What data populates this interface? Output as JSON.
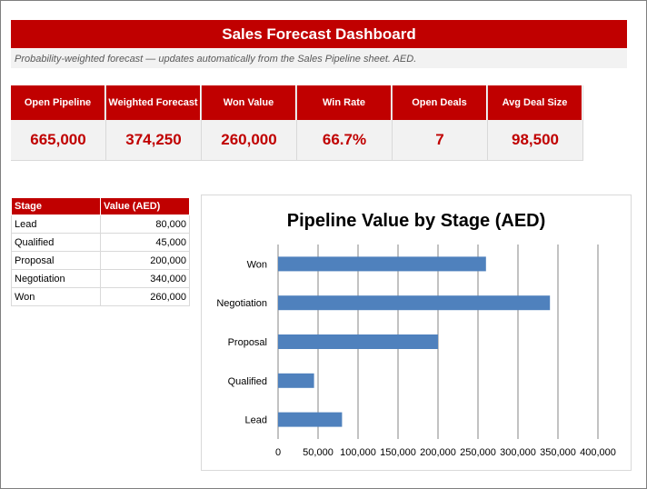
{
  "header": {
    "title": "Sales Forecast Dashboard",
    "subtitle": "Probability-weighted forecast — updates automatically from the Sales Pipeline sheet. AED."
  },
  "kpis": [
    {
      "label": "Open Pipeline",
      "value": "665,000"
    },
    {
      "label": "Weighted Forecast",
      "value": "374,250"
    },
    {
      "label": "Won Value",
      "value": "260,000"
    },
    {
      "label": "Win Rate",
      "value": "66.7%"
    },
    {
      "label": "Open Deals",
      "value": "7"
    },
    {
      "label": "Avg Deal Size",
      "value": "98,500"
    }
  ],
  "stage_table": {
    "headers": [
      "Stage",
      "Value (AED)"
    ],
    "rows": [
      {
        "stage": "Lead",
        "value": "80,000"
      },
      {
        "stage": "Qualified",
        "value": "45,000"
      },
      {
        "stage": "Proposal",
        "value": "200,000"
      },
      {
        "stage": "Negotiation",
        "value": "340,000"
      },
      {
        "stage": "Won",
        "value": "260,000"
      }
    ]
  },
  "colors": {
    "accent": "#c00000",
    "bar": "#4f81bd",
    "kpi_bg": "#f2f2f2"
  },
  "chart_data": {
    "type": "bar",
    "orientation": "horizontal",
    "title": "Pipeline Value by Stage (AED)",
    "categories": [
      "Won",
      "Negotiation",
      "Proposal",
      "Qualified",
      "Lead"
    ],
    "values": [
      260000,
      340000,
      200000,
      45000,
      80000
    ],
    "xlim": [
      0,
      400000
    ],
    "x_tick_labels": [
      "0",
      "50,000",
      "100,000",
      "150,000",
      "200,000",
      "250,000",
      "300,000",
      "350,000",
      "400,000"
    ],
    "xlabel": "",
    "ylabel": "",
    "grid": "vertical",
    "legend": "none"
  }
}
